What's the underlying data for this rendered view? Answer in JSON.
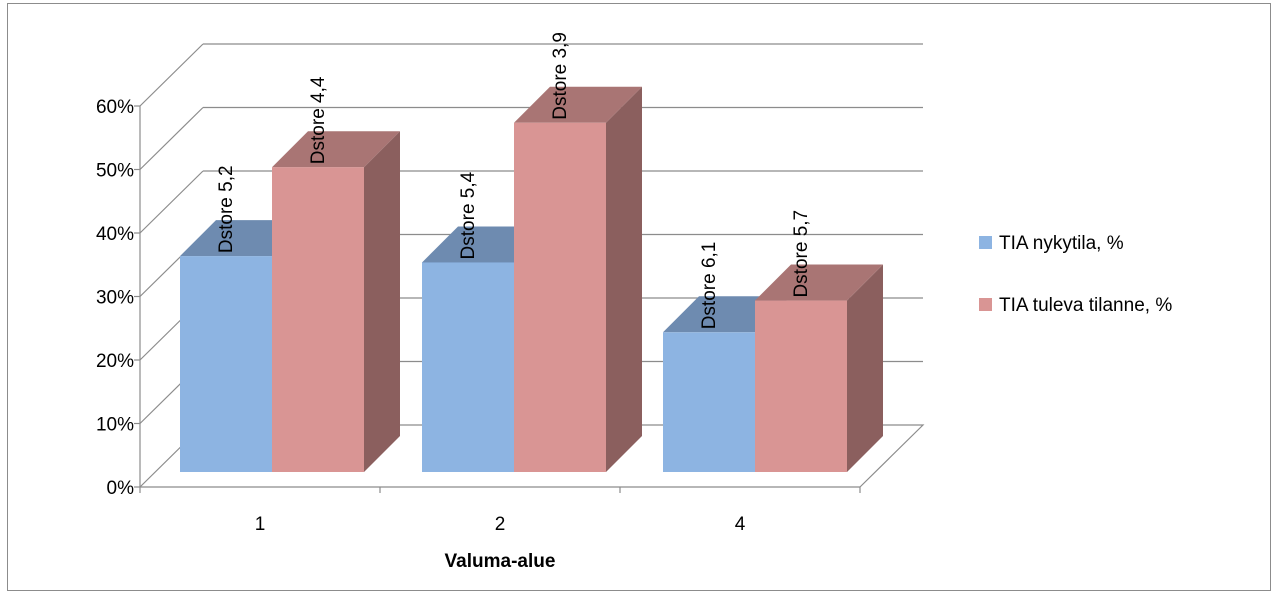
{
  "chart_data": {
    "type": "bar",
    "categories": [
      "1",
      "2",
      "4"
    ],
    "series": [
      {
        "name": "TIA nykytila, %",
        "values": [
          0.34,
          0.33,
          0.22
        ],
        "labels": [
          "Dstore 5,2",
          "Dstore 5,4",
          "Dstore 6,1"
        ],
        "color_front": "#8db4e2",
        "color_top": "#6e8bb0"
      },
      {
        "name": "TIA tuleva tilanne, %",
        "values": [
          0.48,
          0.55,
          0.27
        ],
        "labels": [
          "Dstore 4,4",
          "Dstore 3,9",
          "Dstore 5,7"
        ],
        "color_front": "#d99594",
        "color_top": "#a97574",
        "color_side": "#8b5f5e"
      }
    ],
    "yticks": [
      "0%",
      "10%",
      "20%",
      "30%",
      "40%",
      "50%",
      "60%"
    ],
    "ylim": [
      0,
      0.6
    ],
    "xlabel": "Valuma-alue",
    "ylabel": "",
    "title": "",
    "grid": true,
    "legend_position": "right",
    "projection": "3d"
  }
}
